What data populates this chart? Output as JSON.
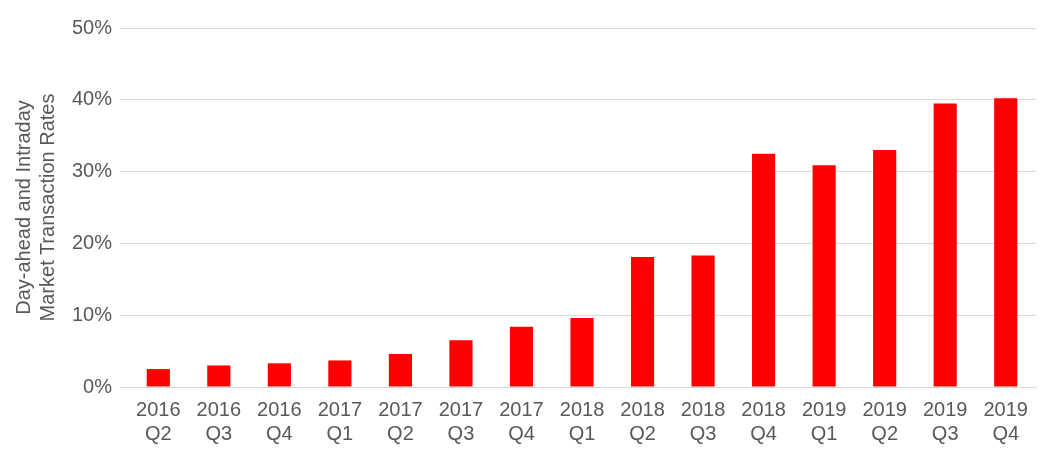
{
  "chart_data": {
    "type": "bar",
    "ylabel": "Day-ahead and Intraday Market Transaction Rates",
    "categories": [
      "2016 Q2",
      "2016 Q3",
      "2016 Q4",
      "2017 Q1",
      "2017 Q2",
      "2017 Q3",
      "2017 Q4",
      "2018 Q1",
      "2018 Q2",
      "2018 Q3",
      "2018 Q4",
      "2019 Q1",
      "2019 Q2",
      "2019 Q3",
      "2019 Q4"
    ],
    "values": [
      2.5,
      3.0,
      3.3,
      3.7,
      4.6,
      6.5,
      8.4,
      9.6,
      18.1,
      18.3,
      32.5,
      30.9,
      33.0,
      39.5,
      40.2
    ],
    "color": "#ff0000",
    "ylim": [
      0,
      50
    ],
    "yticks": [
      {
        "value": 0,
        "label": "0%"
      },
      {
        "value": 10,
        "label": "10%"
      },
      {
        "value": 20,
        "label": "20%"
      },
      {
        "value": 30,
        "label": "30%"
      },
      {
        "value": 40,
        "label": "40%"
      },
      {
        "value": 50,
        "label": "50%"
      }
    ],
    "grid": "y"
  }
}
